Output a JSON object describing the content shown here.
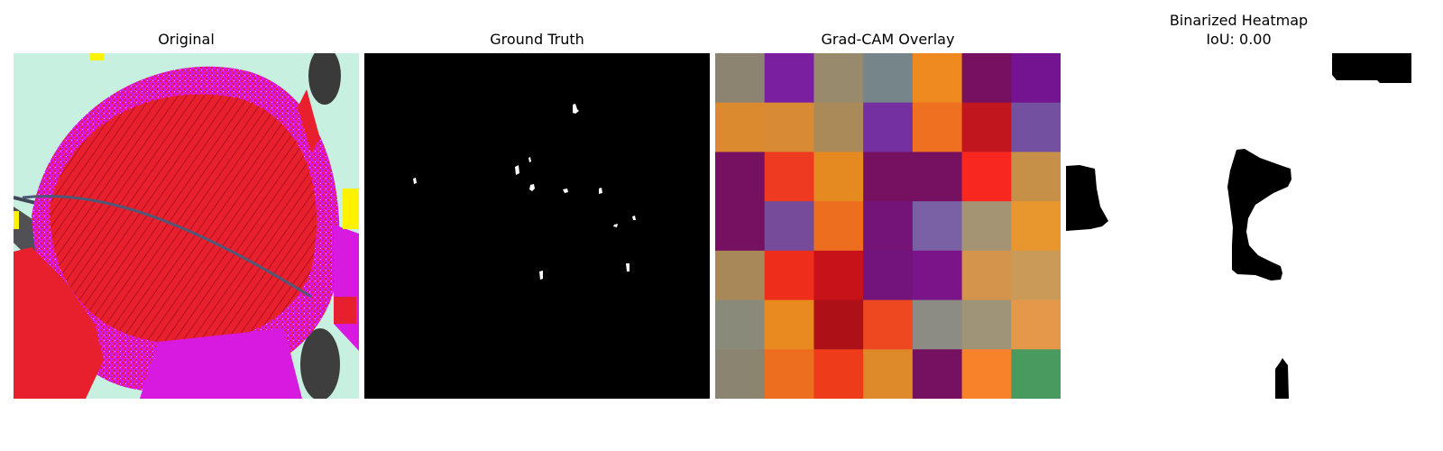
{
  "panels": {
    "original": {
      "title": "Original"
    },
    "ground_truth": {
      "title": "Ground Truth"
    },
    "gradcam": {
      "title": "Grad-CAM Overlay"
    },
    "binarized": {
      "title": "Binarized Heatmap",
      "subtitle": "IoU: 0.00"
    }
  },
  "gradcam_grid": {
    "rows": 7,
    "cols": 7,
    "colors": [
      [
        "#8C8470",
        "#7A1FA0",
        "#988A6C",
        "#76858A",
        "#EE8A20",
        "#771060",
        "#751490"
      ],
      [
        "#DB8A30",
        "#D88A34",
        "#A98A58",
        "#7430A0",
        "#EE7020",
        "#C2161E",
        "#7450A0"
      ],
      [
        "#761060",
        "#EE3A20",
        "#E58A20",
        "#761060",
        "#761060",
        "#F82820",
        "#C79048"
      ],
      [
        "#761060",
        "#764C9A",
        "#EE6E20",
        "#741478",
        "#7A60A4",
        "#A49474",
        "#E8962E"
      ],
      [
        "#A88858",
        "#EE2E1A",
        "#C8121A",
        "#73147C",
        "#7A1488",
        "#D4944C",
        "#C99A58"
      ],
      [
        "#8A8A7A",
        "#E88A20",
        "#AE1018",
        "#EE4820",
        "#8C8C84",
        "#A09478",
        "#E6984A"
      ],
      [
        "#8A8470",
        "#EE6E20",
        "#EE3C1A",
        "#DF8A2A",
        "#761060",
        "#F8822A",
        "#489A5E"
      ]
    ]
  },
  "colors": {
    "leaf_red": "#E8202E",
    "magenta": "#D81AE0",
    "pale_mint": "#C8F0E0",
    "dark_shadow": "#404040",
    "yellow": "#FFF200",
    "mask_black": "#000000",
    "mask_white": "#FFFFFF"
  }
}
